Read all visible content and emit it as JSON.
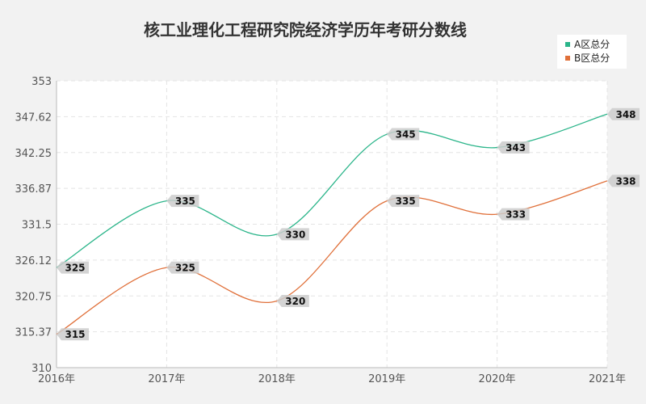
{
  "chart_data": {
    "type": "line",
    "title": "核工业理化工程研究院经济学历年考研分数线",
    "categories": [
      "2016年",
      "2017年",
      "2018年",
      "2019年",
      "2020年",
      "2021年"
    ],
    "y_ticks": [
      "310",
      "315.37",
      "320.75",
      "326.12",
      "331.5",
      "336.87",
      "342.25",
      "347.62",
      "353"
    ],
    "ylim": [
      310,
      353
    ],
    "grid": true,
    "legend_position": "top-right",
    "series": [
      {
        "name": "A区总分",
        "color": "#2bb58a",
        "values": [
          325,
          335,
          330,
          345,
          343,
          348
        ]
      },
      {
        "name": "B区总分",
        "color": "#e0703a",
        "values": [
          315,
          325,
          320,
          335,
          333,
          338
        ]
      }
    ]
  }
}
